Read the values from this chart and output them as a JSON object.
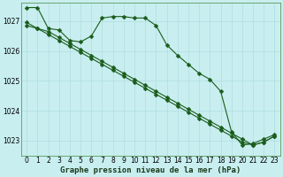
{
  "xlabel": "Graphe pression niveau de la mer (hPa)",
  "x_ticks": [
    0,
    1,
    2,
    3,
    4,
    5,
    6,
    7,
    8,
    9,
    10,
    11,
    12,
    13,
    14,
    15,
    16,
    17,
    18,
    19,
    20,
    21,
    22,
    23
  ],
  "ylim": [
    1022.5,
    1027.6
  ],
  "yticks": [
    1023,
    1024,
    1025,
    1026,
    1027
  ],
  "bg_color": "#c8eef0",
  "grid_color": "#b0dde0",
  "line_color": "#1a5c1a",
  "line1": [
    1027.45,
    1027.45,
    1026.75,
    1026.7,
    1026.35,
    1026.3,
    1026.5,
    1027.1,
    1027.15,
    1027.15,
    1027.1,
    1027.1,
    1026.85,
    1026.2,
    1025.85,
    1025.55,
    1025.25,
    1025.05,
    1024.65,
    1023.3,
    1022.85,
    1022.9,
    1023.05,
    1023.2
  ],
  "line2": [
    1026.95,
    1026.75,
    1026.65,
    1026.45,
    1026.25,
    1026.05,
    1025.85,
    1025.65,
    1025.45,
    1025.25,
    1025.05,
    1024.85,
    1024.65,
    1024.45,
    1024.25,
    1024.05,
    1023.85,
    1023.65,
    1023.45,
    1023.25,
    1023.05,
    1022.85,
    1022.95,
    1023.15
  ],
  "line3": [
    1026.85,
    1026.75,
    1026.55,
    1026.35,
    1026.15,
    1025.95,
    1025.75,
    1025.55,
    1025.35,
    1025.15,
    1024.95,
    1024.75,
    1024.55,
    1024.35,
    1024.15,
    1023.95,
    1023.75,
    1023.55,
    1023.35,
    1023.15,
    1022.95,
    1022.85,
    1022.95,
    1023.15
  ],
  "marker": "D",
  "marker_size": 2.5,
  "line_width": 0.8,
  "tick_fontsize": 5.5,
  "xlabel_fontsize": 6.5
}
